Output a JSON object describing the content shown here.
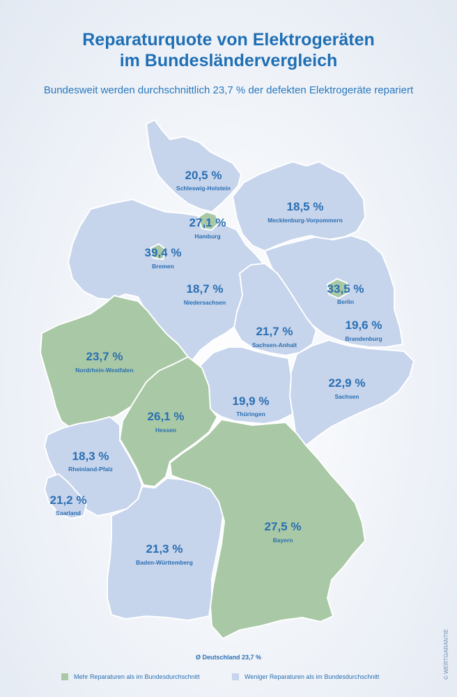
{
  "title_line1": "Reparaturquote von Elektrogeräten",
  "title_line2": "im Bundesländervergleich",
  "subtitle": "Bundesweit werden durchschnittlich 23,7 % der defekten Elektrogeräte repariert",
  "colors": {
    "above": "#a9c8a5",
    "below": "#c6d4ec",
    "accent": "#1f6fb5"
  },
  "states": {
    "sh": {
      "name": "Schleswig-Holstein",
      "value": "20,5 %",
      "group": "below"
    },
    "mv": {
      "name": "Mecklenburg-Vorpommern",
      "value": "18,5 %",
      "group": "below"
    },
    "hh": {
      "name": "Hamburg",
      "value": "27,1 %",
      "group": "above"
    },
    "hb": {
      "name": "Bremen",
      "value": "39,4 %",
      "group": "above"
    },
    "ni": {
      "name": "Niedersachsen",
      "value": "18,7 %",
      "group": "below"
    },
    "be": {
      "name": "Berlin",
      "value": "33,5 %",
      "group": "above"
    },
    "bb": {
      "name": "Brandenburg",
      "value": "19,6 %",
      "group": "below"
    },
    "st": {
      "name": "Sachsen-Anhalt",
      "value": "21,7 %",
      "group": "below"
    },
    "nw": {
      "name": "Nordrhein-Westfalen",
      "value": "23,7 %",
      "group": "above"
    },
    "sn": {
      "name": "Sachsen",
      "value": "22,9 %",
      "group": "below"
    },
    "th": {
      "name": "Thüringen",
      "value": "19,9 %",
      "group": "below"
    },
    "he": {
      "name": "Hessen",
      "value": "26,1 %",
      "group": "above"
    },
    "rp": {
      "name": "Rheinland-Pfalz",
      "value": "18,3 %",
      "group": "below"
    },
    "sl": {
      "name": "Saarland",
      "value": "21,2 %",
      "group": "below"
    },
    "by": {
      "name": "Bayern",
      "value": "27,5 %",
      "group": "above"
    },
    "bw": {
      "name": "Baden-Württemberg",
      "value": "21,3 %",
      "group": "below"
    }
  },
  "average": "Ø Deutschland 23,7 %",
  "legend": {
    "above": "Mehr Reparaturen als im Bundesdurchschnitt",
    "below": "Weniger Reparaturen als im Bundesdurchschnitt"
  },
  "credit": "© WERTGARANTIE"
}
